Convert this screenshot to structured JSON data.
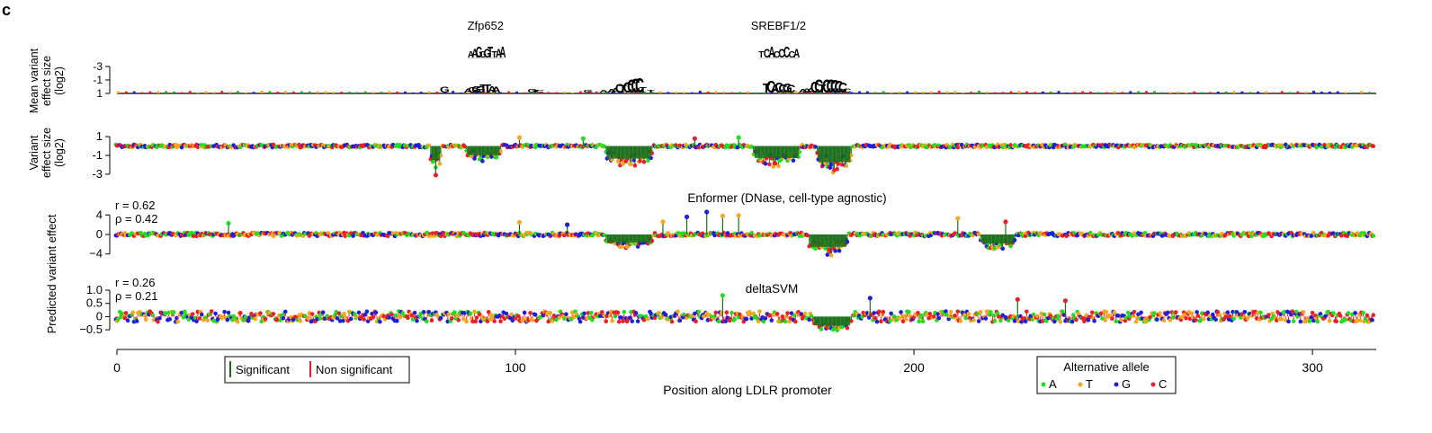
{
  "panel_label": "c",
  "xlabel": "Position along LDLR promoter",
  "x_ticks": [
    "0",
    "100",
    "200",
    "300"
  ],
  "legend_significance": {
    "significant": "Significant",
    "non_significant": "Non significant"
  },
  "legend_allele": {
    "title": "Alternative allele",
    "items": [
      "A",
      "T",
      "G",
      "C"
    ]
  },
  "colors": {
    "A": "#22dd22",
    "T": "#f5a623",
    "G": "#1f1fd6",
    "C": "#e8202a",
    "significant": "#1a6e1a",
    "non_significant": "#e8202a",
    "logo_G": "#f5a623",
    "logo_T": "#e8202a",
    "logo_C": "#1f1fd6",
    "logo_A": "#22aa22"
  },
  "chart_data": [
    {
      "type": "sequence-logo",
      "ylabel": [
        "Mean variant",
        "effect size",
        "(log2)"
      ],
      "y_ticks": [
        "-3",
        "-1",
        "1"
      ],
      "ylim": [
        1,
        -3
      ],
      "motifs": [
        {
          "name": "Zfp652",
          "x_range": [
            88,
            97
          ],
          "motif_text": "AAGGGTTAA"
        },
        {
          "name": "SREBF1/2",
          "x_range": [
            161,
            171
          ],
          "motif_text": "TCACCCCA"
        }
      ],
      "logo_letters": [
        {
          "x": 81,
          "letter": "G",
          "height": 0.9
        },
        {
          "x": 87,
          "letter": "A",
          "height": 0.6
        },
        {
          "x": 88,
          "letter": "G",
          "height": 0.8
        },
        {
          "x": 89,
          "letter": "G",
          "height": 1.0
        },
        {
          "x": 90,
          "letter": "G",
          "height": 1.0
        },
        {
          "x": 91,
          "letter": "T",
          "height": 1.2
        },
        {
          "x": 92,
          "letter": "T",
          "height": 1.2
        },
        {
          "x": 93,
          "letter": "A",
          "height": 1.0
        },
        {
          "x": 94,
          "letter": "A",
          "height": 0.9
        },
        {
          "x": 103,
          "letter": "G",
          "height": 0.5
        },
        {
          "x": 104,
          "letter": "T",
          "height": 0.4
        },
        {
          "x": 105,
          "letter": "C",
          "height": 0.4
        },
        {
          "x": 117,
          "letter": "G",
          "height": 0.4
        },
        {
          "x": 121,
          "letter": "A",
          "height": 0.4
        },
        {
          "x": 123,
          "letter": "A",
          "height": 0.5
        },
        {
          "x": 124,
          "letter": "A",
          "height": 0.7
        },
        {
          "x": 125,
          "letter": "C",
          "height": 1.3
        },
        {
          "x": 126,
          "letter": "T",
          "height": 1.1
        },
        {
          "x": 127,
          "letter": "C",
          "height": 1.6
        },
        {
          "x": 128,
          "letter": "C",
          "height": 2.0
        },
        {
          "x": 129,
          "letter": "C",
          "height": 2.1
        },
        {
          "x": 130,
          "letter": "C",
          "height": 2.2
        },
        {
          "x": 131,
          "letter": "T",
          "height": 0.8
        },
        {
          "x": 133,
          "letter": "T",
          "height": 0.4
        },
        {
          "x": 162,
          "letter": "T",
          "height": 1.4
        },
        {
          "x": 163,
          "letter": "C",
          "height": 1.8
        },
        {
          "x": 164,
          "letter": "A",
          "height": 1.2
        },
        {
          "x": 165,
          "letter": "C",
          "height": 1.5
        },
        {
          "x": 166,
          "letter": "C",
          "height": 1.2
        },
        {
          "x": 167,
          "letter": "G",
          "height": 1.4
        },
        {
          "x": 168,
          "letter": "C",
          "height": 1.1
        },
        {
          "x": 171,
          "letter": "A",
          "height": 0.5
        },
        {
          "x": 172,
          "letter": "A",
          "height": 0.6
        },
        {
          "x": 173,
          "letter": "A",
          "height": 0.7
        },
        {
          "x": 174,
          "letter": "C",
          "height": 1.7
        },
        {
          "x": 175,
          "letter": "C",
          "height": 2.0
        },
        {
          "x": 176,
          "letter": "T",
          "height": 1.2
        },
        {
          "x": 177,
          "letter": "C",
          "height": 2.0
        },
        {
          "x": 178,
          "letter": "C",
          "height": 2.0
        },
        {
          "x": 179,
          "letter": "C",
          "height": 1.9
        },
        {
          "x": 180,
          "letter": "C",
          "height": 1.8
        },
        {
          "x": 181,
          "letter": "C",
          "height": 1.5
        },
        {
          "x": 182,
          "letter": "C",
          "height": 0.6
        }
      ]
    },
    {
      "type": "lollipop",
      "ylabel": [
        "Variant",
        "effect size",
        "(log2)"
      ],
      "y_ticks": [
        "1",
        "-1",
        "-3"
      ],
      "ylim": [
        -3.2,
        1.2
      ],
      "background_noise": 0.15,
      "dips": [
        {
          "start": 79,
          "end": 81,
          "depth": -2.0
        },
        {
          "start": 88,
          "end": 96,
          "depth": -1.3
        },
        {
          "start": 123,
          "end": 134,
          "depth": -1.8
        },
        {
          "start": 160,
          "end": 171,
          "depth": -1.7
        },
        {
          "start": 176,
          "end": 184,
          "depth": -2.3
        }
      ],
      "peaks": [
        {
          "x": 80,
          "value": -3.1
        },
        {
          "x": 101,
          "value": 0.9
        },
        {
          "x": 117,
          "value": 0.8
        },
        {
          "x": 145,
          "value": 0.8
        },
        {
          "x": 156,
          "value": 0.9
        }
      ]
    },
    {
      "type": "lollipop",
      "title": "Enformer (DNase, cell-type agnostic)",
      "ylabel": [
        "Predicted variant effect"
      ],
      "stats": [
        "r = 0.62",
        "ρ = 0.42"
      ],
      "y_ticks": [
        "4",
        "0",
        "−4"
      ],
      "ylim": [
        -4.6,
        4.6
      ],
      "background_noise": 0.35,
      "dips": [
        {
          "start": 123,
          "end": 134,
          "depth": -2.2
        },
        {
          "start": 174,
          "end": 183,
          "depth": -3.4
        },
        {
          "start": 217,
          "end": 225,
          "depth": -2.5
        }
      ],
      "peaks": [
        {
          "x": 28,
          "value": 2.3
        },
        {
          "x": 101,
          "value": 2.5
        },
        {
          "x": 113,
          "value": 2.0
        },
        {
          "x": 137,
          "value": 2.6
        },
        {
          "x": 143,
          "value": 3.6
        },
        {
          "x": 148,
          "value": 4.6
        },
        {
          "x": 152,
          "value": 3.8
        },
        {
          "x": 156,
          "value": 3.9
        },
        {
          "x": 211,
          "value": 3.3
        },
        {
          "x": 223,
          "value": 2.6
        }
      ]
    },
    {
      "type": "lollipop",
      "title": "deltaSVM",
      "ylabel": [],
      "stats": [
        "r = 0.26",
        "ρ = 0.21"
      ],
      "y_ticks": [
        "1.0",
        "0.5",
        "0",
        "−0.5"
      ],
      "ylim": [
        -0.7,
        1.0
      ],
      "background_noise": 0.2,
      "dips": [
        {
          "start": 175,
          "end": 184,
          "depth": -0.45
        }
      ],
      "peaks": [
        {
          "x": 152,
          "value": 0.8
        },
        {
          "x": 189,
          "value": 0.7
        },
        {
          "x": 226,
          "value": 0.65
        },
        {
          "x": 238,
          "value": 0.6
        }
      ]
    }
  ],
  "shared_ylabel": "Predicted variant effect"
}
